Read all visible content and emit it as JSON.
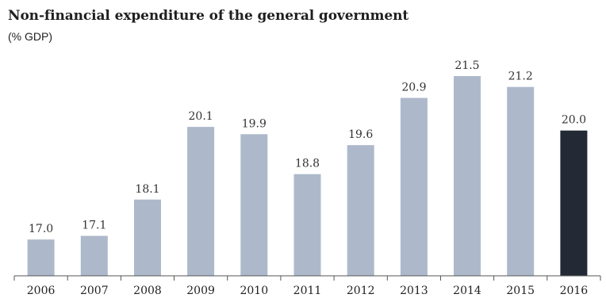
{
  "chart_data": {
    "type": "bar",
    "title": "Non-financial expenditure of the general government",
    "subtitle": "(% GDP)",
    "xlabel": "",
    "ylabel": "",
    "categories": [
      "2006",
      "2007",
      "2008",
      "2009",
      "2010",
      "2011",
      "2012",
      "2013",
      "2014",
      "2015",
      "2016"
    ],
    "values": [
      17.0,
      17.1,
      18.1,
      20.1,
      19.9,
      18.8,
      19.6,
      20.9,
      21.5,
      21.2,
      20.0
    ],
    "value_labels": [
      "17.0",
      "17.1",
      "18.1",
      "20.1",
      "19.9",
      "18.8",
      "19.6",
      "20.9",
      "21.5",
      "21.2",
      "20.0"
    ],
    "ylim": [
      16.0,
      21.5
    ],
    "grid": false,
    "colors": {
      "bar": "#adb9cb",
      "highlight_bar": "#232a35",
      "axis": "#555555"
    },
    "highlight_index": 10
  }
}
